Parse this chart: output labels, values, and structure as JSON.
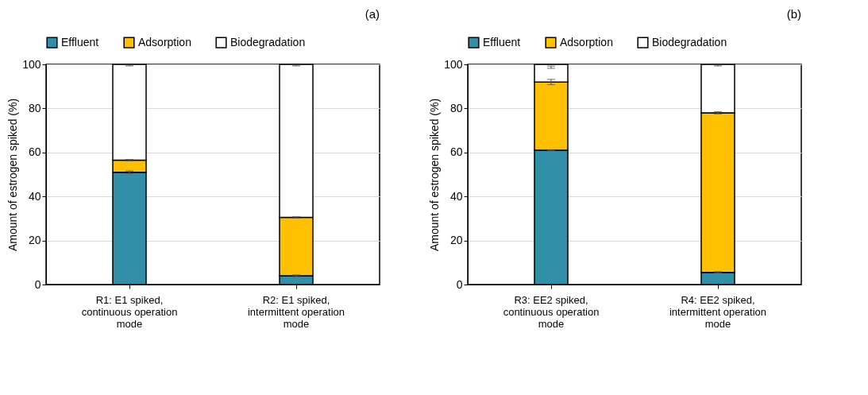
{
  "chart_data": [
    {
      "type": "bar",
      "title": "(a)",
      "ylabel": "Amount of estrogen spiked (%)",
      "stacked": true,
      "grid": "y",
      "legend": "top",
      "categories": [
        "R1: E1 spiked,\ncontinuous operation\nmode",
        "R2: E1 spiked,\nintermittent operation\nmode"
      ],
      "ylim": [
        0,
        100
      ],
      "yticks": [
        0,
        20,
        40,
        60,
        80,
        100
      ],
      "series": [
        {
          "name": "Effluent",
          "color": "#318fa8",
          "values": [
            51,
            4
          ],
          "errors": [
            [
              50.4,
              51.6
            ],
            [
              3.6,
              4.4
            ]
          ]
        },
        {
          "name": "Adsorption",
          "color": "#ffc000",
          "values": [
            5.5,
            26.5
          ],
          "errors": [
            [
              56.2,
              56.8
            ],
            [
              30.2,
              30.8
            ]
          ]
        },
        {
          "name": "Biodegradation",
          "color": "#ffffff",
          "values": [
            43.5,
            69.5
          ],
          "errors": [
            [
              99.3,
              99.7
            ],
            [
              99.3,
              99.7
            ]
          ]
        }
      ]
    },
    {
      "type": "bar",
      "title": "(b)",
      "ylabel": "Amount of estrogen spiked (%)",
      "stacked": true,
      "grid": "y",
      "legend": "top",
      "categories": [
        "R3: EE2 spiked,\ncontinuous operation\nmode",
        "R4: EE2 spiked,\nintermittent operation\nmode"
      ],
      "ylim": [
        0,
        100
      ],
      "yticks": [
        0,
        20,
        40,
        60,
        80,
        100
      ],
      "series": [
        {
          "name": "Effluent",
          "color": "#318fa8",
          "values": [
            61,
            5.5
          ],
          "errors": [
            [
              60.8,
              61.2
            ],
            [
              5.2,
              5.8
            ]
          ]
        },
        {
          "name": "Adsorption",
          "color": "#ffc000",
          "values": [
            31,
            72.5
          ],
          "errors": [
            [
              90.8,
              93.2
            ],
            [
              77.5,
              78.5
            ]
          ]
        },
        {
          "name": "Biodegradation",
          "color": "#ffffff",
          "values": [
            8,
            22
          ],
          "errors": [
            [
              98.2,
              99.2
            ],
            [
              99.3,
              99.7
            ]
          ]
        }
      ]
    }
  ]
}
